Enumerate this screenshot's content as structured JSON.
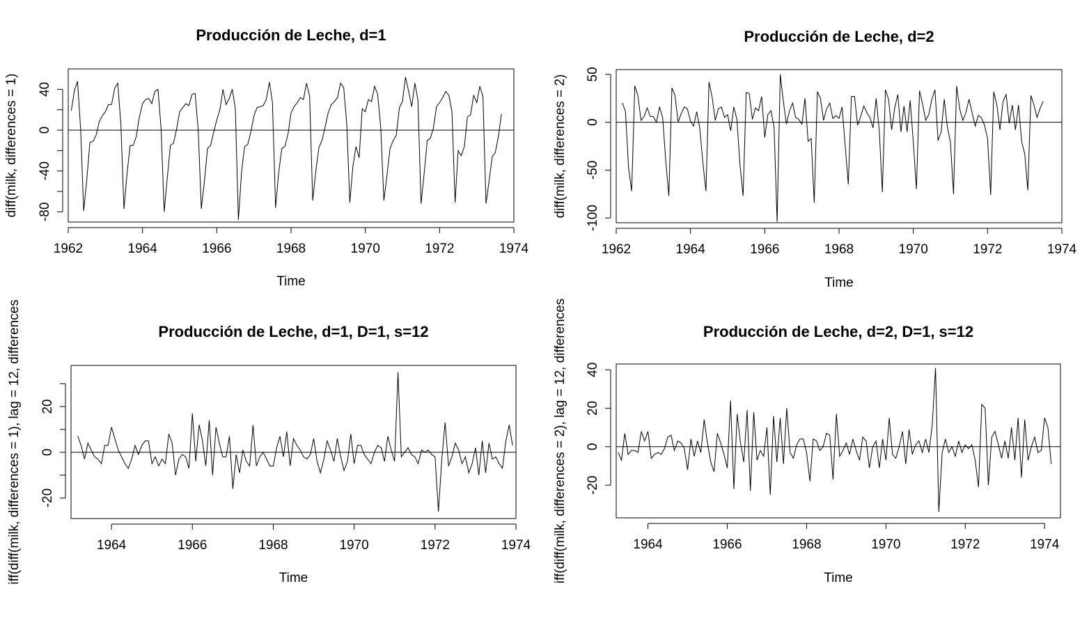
{
  "chart_data": [
    {
      "type": "line",
      "title": "Producción de Leche, d=1",
      "xlabel": "Time",
      "ylabel": "diff(milk, differences = 1)",
      "xlim": [
        1962,
        1974
      ],
      "ylim": [
        -90,
        60
      ],
      "x_ticks": [
        1962,
        1964,
        1966,
        1968,
        1970,
        1972,
        1974
      ],
      "y_ticks": [
        -80,
        -40,
        0,
        40
      ],
      "y_ticks_minor": [
        -60,
        -20,
        20
      ],
      "hline": 0,
      "x_start": 1962.083333,
      "x_step": 0.083333,
      "values": [
        19,
        39,
        48,
        1,
        -79,
        -48,
        -12,
        -11,
        -5,
        8,
        14,
        18,
        25,
        25,
        41,
        46,
        6,
        -77,
        -43,
        -15,
        -15,
        -6,
        13,
        26,
        30,
        31,
        26,
        38,
        40,
        2,
        -80,
        -47,
        -15,
        -13,
        1,
        18,
        22,
        26,
        24,
        35,
        36,
        0,
        -77,
        -50,
        -18,
        -15,
        -2,
        10,
        20,
        40,
        25,
        31,
        40,
        21,
        -88,
        -41,
        -16,
        -14,
        -2,
        14,
        22,
        23,
        24,
        30,
        47,
        27,
        -76,
        -42,
        -18,
        -16,
        -4,
        17,
        23,
        27,
        32,
        30,
        46,
        33,
        -69,
        -40,
        -17,
        -10,
        3,
        17,
        25,
        28,
        32,
        46,
        42,
        6,
        -71,
        -35,
        -16,
        -27,
        21,
        18,
        30,
        28,
        43,
        35,
        2,
        -69,
        -44,
        -18,
        -10,
        -5,
        22,
        28,
        52,
        38,
        23,
        46,
        30,
        -72,
        -43,
        -10,
        -8,
        2,
        23,
        27,
        32,
        38,
        34,
        18,
        -71,
        -20,
        -25,
        -16,
        13,
        15,
        34,
        27,
        43,
        33,
        -72,
        -50,
        -26,
        -22,
        -6,
        16
      ]
    },
    {
      "type": "line",
      "title": "Producción de Leche, d=2",
      "xlabel": "Time",
      "ylabel": "diff(milk, differences = 2)",
      "xlim": [
        1962,
        1974
      ],
      "ylim": [
        -105,
        55
      ],
      "x_ticks": [
        1962,
        1964,
        1966,
        1968,
        1970,
        1972,
        1974
      ],
      "y_ticks": [
        -100,
        -50,
        0,
        50
      ],
      "hline": 0,
      "x_start": 1962.166667,
      "x_step": 0.083333,
      "values": [
        20,
        11,
        -48,
        -72,
        38,
        28,
        2,
        6,
        15,
        6,
        6,
        0,
        16,
        5,
        -40,
        -77,
        36,
        28,
        0,
        9,
        16,
        14,
        1,
        -4,
        11,
        -6,
        -42,
        -72,
        42,
        26,
        2,
        14,
        16,
        5,
        8,
        -9,
        16,
        3,
        -45,
        -77,
        31,
        30,
        3,
        15,
        12,
        27,
        -16,
        8,
        12,
        -5,
        -104,
        50,
        22,
        -2,
        12,
        20,
        5,
        3,
        -2,
        25,
        -20,
        -17,
        -84,
        32,
        25,
        2,
        14,
        20,
        4,
        7,
        4,
        16,
        -25,
        -65,
        27,
        27,
        -3,
        6,
        17,
        10,
        5,
        -6,
        25,
        -9,
        -73,
        34,
        24,
        -8,
        15,
        29,
        -10,
        17,
        -10,
        23,
        -21,
        -70,
        33,
        19,
        2,
        8,
        24,
        34,
        -19,
        -10,
        24,
        -5,
        -21,
        -75,
        38,
        14,
        2,
        10,
        24,
        10,
        -4,
        7,
        5,
        -3,
        -17,
        -76,
        32,
        18,
        -8,
        22,
        29,
        -1,
        18,
        -8,
        18,
        -20,
        -33,
        -71,
        28,
        18,
        5,
        15,
        22
      ]
    },
    {
      "type": "line",
      "title": "Producción de Leche, d=1, D=1, s=12",
      "xlabel": "Time",
      "ylabel": "iff(diff(milk, differences = 1), lag = 12, differences",
      "xlim": [
        1963,
        1974
      ],
      "ylim": [
        -29,
        38
      ],
      "x_ticks": [
        1964,
        1966,
        1968,
        1970,
        1972,
        1974
      ],
      "y_ticks": [
        -20,
        0,
        20
      ],
      "y_ticks_minor": [
        -10,
        10,
        30
      ],
      "hline": 0,
      "x_start": 1963.166667,
      "x_step": 0.083333,
      "values": [
        7,
        3,
        -3,
        4,
        1,
        -2,
        -3,
        -5,
        3,
        3,
        11,
        6,
        1,
        -2,
        -5,
        -7,
        -3,
        3,
        -1,
        3,
        5,
        5,
        -5,
        -2,
        -6,
        -3,
        -5,
        8,
        4,
        -10,
        -3,
        -1,
        -2,
        -7,
        17,
        -4,
        12,
        5,
        -6,
        14,
        -10,
        11,
        4,
        -2,
        -2,
        7,
        -16,
        -1,
        -9,
        1,
        -4,
        -6,
        12,
        -6,
        -2,
        0,
        -3,
        -6,
        -6,
        2,
        7,
        -2,
        9,
        -6,
        6,
        3,
        1,
        -2,
        -3,
        -1,
        6,
        -4,
        -9,
        -3,
        5,
        1,
        -4,
        6,
        -2,
        -8,
        -4,
        8,
        -5,
        3,
        3,
        -1,
        -3,
        -5,
        0,
        3,
        2,
        -4,
        7,
        1,
        -4,
        35,
        -2,
        0,
        2,
        -1,
        -2,
        -5,
        1,
        0,
        1,
        -1,
        -2,
        -26,
        -3,
        13,
        -6,
        -2,
        4,
        1,
        -5,
        -2,
        -9,
        -5,
        2,
        -10,
        5,
        -9,
        4,
        -3,
        -2,
        -5,
        -7,
        5,
        12,
        3
      ]
    },
    {
      "type": "line",
      "title": "Producción de Leche, d=2, D=1, s=12",
      "xlabel": "Time",
      "ylabel": "iff(diff(milk, differences = 2), lag = 12, differences",
      "xlim": [
        1963.2,
        1974.4
      ],
      "ylim": [
        -37,
        43
      ],
      "x_ticks": [
        1964,
        1966,
        1968,
        1970,
        1972,
        1974
      ],
      "y_ticks": [
        -20,
        0,
        20,
        40
      ],
      "hline": 0,
      "x_start": 1963.25,
      "x_step": 0.083333,
      "values": [
        -3,
        -7,
        7,
        -4,
        -2,
        -2,
        -3,
        8,
        3,
        8,
        -6,
        -4,
        -3,
        -4,
        -1,
        5,
        6,
        -2,
        3,
        2,
        -1,
        -12,
        4,
        -5,
        3,
        -3,
        14,
        2,
        -8,
        -13,
        7,
        2,
        -4,
        -11,
        24,
        -22,
        17,
        2,
        -8,
        19,
        -23,
        18,
        -7,
        -2,
        -5,
        10,
        -25,
        16,
        -8,
        15,
        -9,
        20,
        -3,
        -6,
        1,
        4,
        4,
        -3,
        -18,
        4,
        3,
        -2,
        0,
        7,
        6,
        -17,
        17,
        -5,
        -2,
        2,
        -4,
        4,
        -2,
        -7,
        5,
        3,
        -11,
        0,
        3,
        -11,
        4,
        -7,
        15,
        -4,
        -6,
        0,
        8,
        -9,
        9,
        -4,
        1,
        3,
        -3,
        4,
        -3,
        11,
        41,
        -34,
        -3,
        4,
        -3,
        0,
        -5,
        3,
        -3,
        1,
        -1,
        1,
        -7,
        -21,
        22,
        20,
        -20,
        5,
        8,
        1,
        -6,
        3,
        -6,
        10,
        -7,
        15,
        -16,
        14,
        -7,
        0,
        5,
        -3,
        -2,
        15,
        10,
        -9
      ]
    }
  ]
}
